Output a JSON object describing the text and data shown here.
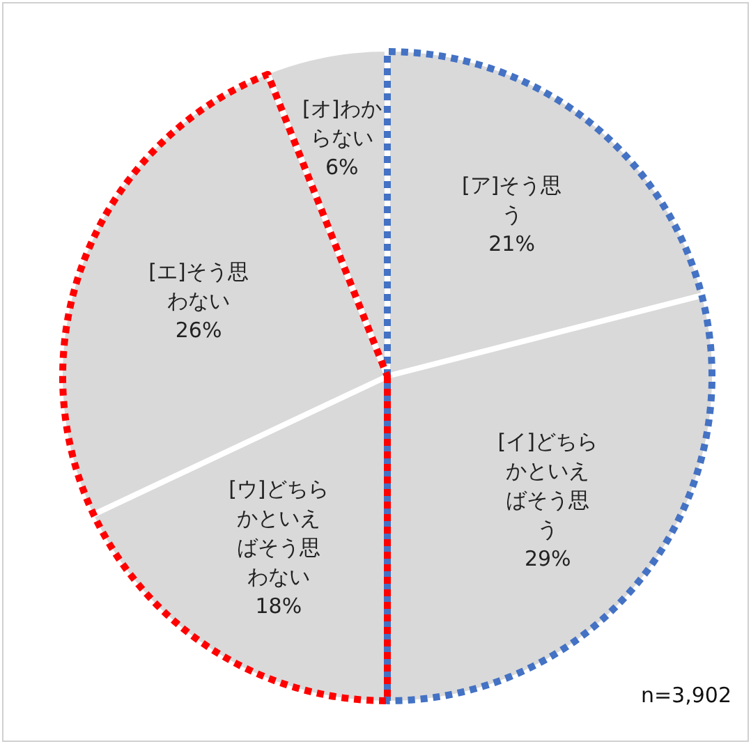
{
  "chart_data": {
    "type": "pie",
    "categories": [
      "[ア]そう思う",
      "[イ]どちらかといえばそう思う",
      "[ウ]どちらかといえばそう思わない",
      "[エ]そう思わない",
      "[オ]わからない"
    ],
    "values": [
      21,
      29,
      18,
      26,
      6
    ],
    "value_labels": [
      "21%",
      "29%",
      "18%",
      "26%",
      "6%"
    ],
    "colors": [
      "#d9d9d9",
      "#d9d9d9",
      "#d9d9d9",
      "#d9d9d9",
      "#d9d9d9"
    ],
    "annotations": [
      "n=3,902"
    ]
  }
}
